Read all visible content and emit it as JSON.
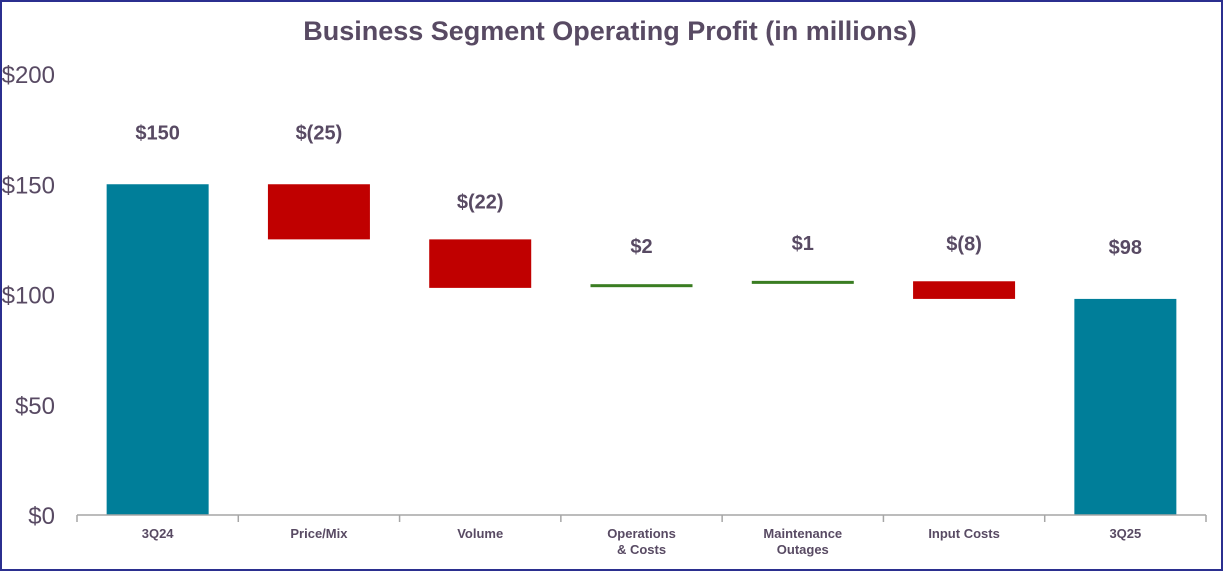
{
  "chart_data": {
    "type": "waterfall",
    "title": "Business Segment Operating Profit (in millions)",
    "xlabel": "",
    "ylabel": "",
    "ylim": [
      0,
      200
    ],
    "yticks": [
      0,
      50,
      100,
      150,
      200
    ],
    "ytick_labels": [
      "$0",
      "$50",
      "$100",
      "$150",
      "$200"
    ],
    "grid": false,
    "categories": [
      "3Q24",
      "Price/Mix",
      "Volume",
      "Operations\n& Costs",
      "Maintenance\nOutages",
      "Input Costs",
      "3Q25"
    ],
    "values": [
      150,
      -25,
      -22,
      2,
      1,
      -8,
      98
    ],
    "kinds": [
      "total",
      "delta",
      "delta",
      "delta",
      "delta",
      "delta",
      "total"
    ],
    "data_labels": [
      "$150",
      "$(25)",
      "$(22)",
      "$2",
      "$1",
      "$(8)",
      "$98"
    ],
    "colors": {
      "total": "#007e99",
      "decrease": "#c00000",
      "increase": "#3a7d22",
      "axis": "#a6a6a6",
      "text": "#584a63"
    }
  }
}
